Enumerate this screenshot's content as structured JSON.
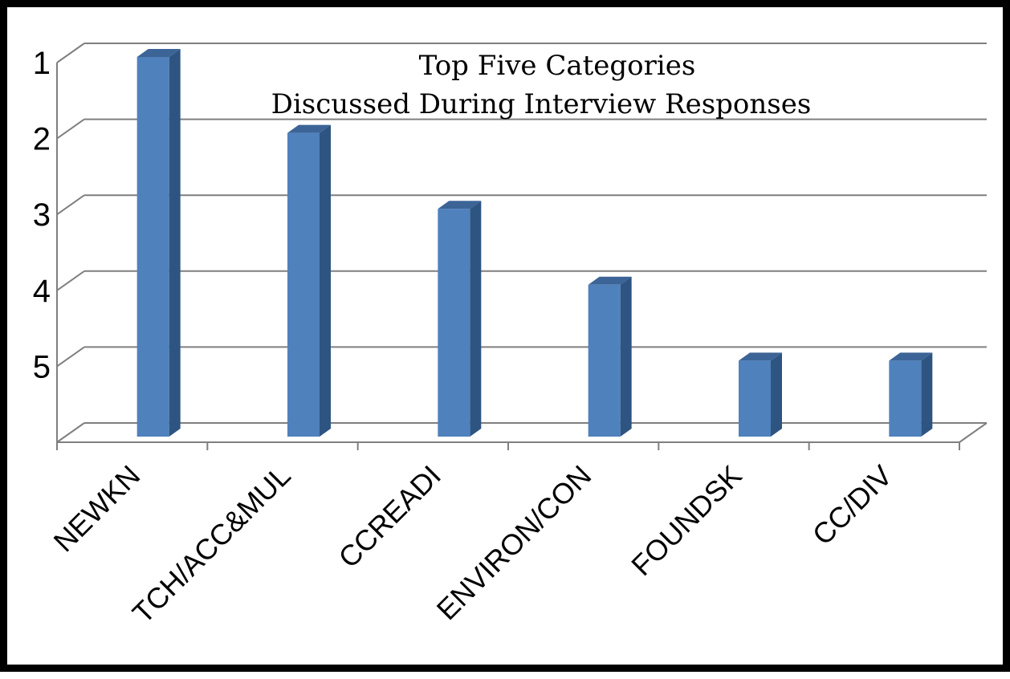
{
  "chart_data": {
    "type": "bar",
    "title": "Top Five Categories",
    "subtitle": "Discussed During Interview Responses",
    "categories": [
      "NEWKN",
      "TCH/ACC&MUL",
      "CCREADI",
      "ENVIRON/CON",
      "FOUNDSK",
      "CC/DIV"
    ],
    "values": [
      1,
      2,
      3,
      4,
      5,
      5
    ],
    "y_ticks": [
      "1",
      "2",
      "3",
      "4",
      "5"
    ],
    "y_axis_reversed": true,
    "grid": true,
    "three_d": true,
    "legend": "none",
    "colors": {
      "bar_front": "#4F81BD",
      "bar_side": "#2E5482",
      "bar_top": "#3C6496",
      "grid": "#7F7F7F"
    }
  }
}
